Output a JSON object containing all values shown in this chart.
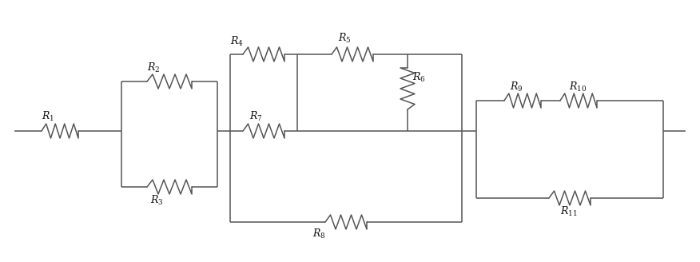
{
  "fig_width": 8.76,
  "fig_height": 3.28,
  "dpi": 100,
  "line_color": "#555555",
  "line_width": 1.1,
  "text_color": "#111111",
  "font_size": 9,
  "background": "#ffffff",
  "resistor_amp": 0.09,
  "resistor_n": 4
}
